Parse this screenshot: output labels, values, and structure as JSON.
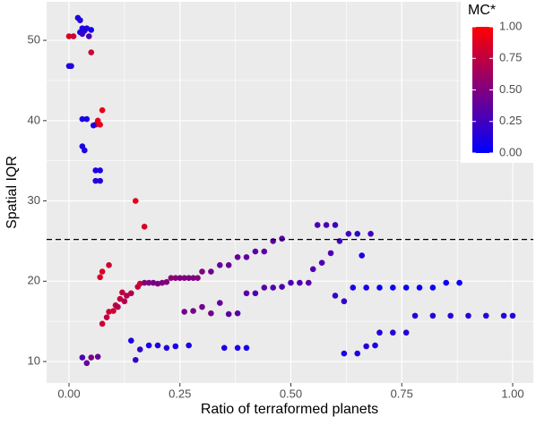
{
  "chart_data": {
    "type": "scatter",
    "x_label": "Ratio of terraformed planets",
    "y_label": "Spatial IQR",
    "xlim": [
      -0.0505,
      1.0465
    ],
    "ylim": [
      7.33,
      54.8
    ],
    "xticks": [
      {
        "value": 0,
        "label": "0.00"
      },
      {
        "value": 0.25,
        "label": "0.25"
      },
      {
        "value": 0.5,
        "label": "0.50"
      },
      {
        "value": 0.75,
        "label": "0.75"
      },
      {
        "value": 1,
        "label": "1.00"
      }
    ],
    "yticks": [
      10,
      20,
      30,
      40,
      50
    ],
    "x_minor": [
      0.125,
      0.375,
      0.625,
      0.875
    ],
    "y_minor": [
      15,
      25,
      35,
      45
    ],
    "grid": true,
    "hline": 25.2,
    "colorbar": {
      "title": "MC*",
      "lim": [
        0,
        1
      ],
      "low_color": "#0000ff",
      "high_color": "#ff0000",
      "ticks": [
        {
          "value": 1,
          "label": "1.00"
        },
        {
          "value": 0.75,
          "label": "0.75"
        },
        {
          "value": 0.5,
          "label": "0.50"
        },
        {
          "value": 0.25,
          "label": "0.25"
        },
        {
          "value": 0,
          "label": "0.00"
        }
      ]
    },
    "x": [
      0.0,
      0.01,
      0.0,
      0.005,
      0.02,
      0.025,
      0.03,
      0.035,
      0.04,
      0.05,
      0.025,
      0.03,
      0.045,
      0.05,
      0.03,
      0.04,
      0.06,
      0.065,
      0.07,
      0.075,
      0.055,
      0.03,
      0.035,
      0.06,
      0.07,
      0.06,
      0.07,
      0.15,
      0.17,
      0.07,
      0.075,
      0.09,
      0.075,
      0.085,
      0.09,
      0.1,
      0.105,
      0.11,
      0.115,
      0.12,
      0.125,
      0.13,
      0.14,
      0.155,
      0.16,
      0.17,
      0.18,
      0.19,
      0.2,
      0.21,
      0.22,
      0.23,
      0.24,
      0.25,
      0.26,
      0.27,
      0.28,
      0.29,
      0.3,
      0.32,
      0.34,
      0.36,
      0.38,
      0.4,
      0.42,
      0.44,
      0.46,
      0.48,
      0.26,
      0.28,
      0.3,
      0.32,
      0.34,
      0.36,
      0.38,
      0.4,
      0.42,
      0.44,
      0.46,
      0.48,
      0.5,
      0.52,
      0.54,
      0.55,
      0.57,
      0.59,
      0.61,
      0.63,
      0.65,
      0.68,
      0.56,
      0.58,
      0.6,
      0.6,
      0.62,
      0.64,
      0.67,
      0.7,
      0.73,
      0.76,
      0.79,
      0.82,
      0.85,
      0.88,
      0.66,
      0.7,
      0.73,
      0.76,
      0.78,
      0.82,
      0.86,
      0.9,
      0.94,
      0.98,
      1.0,
      0.03,
      0.04,
      0.05,
      0.065,
      0.14,
      0.15,
      0.16,
      0.18,
      0.2,
      0.22,
      0.24,
      0.27,
      0.35,
      0.38,
      0.4,
      0.62,
      0.65,
      0.67,
      0.69
    ],
    "y": [
      50.5,
      50.5,
      46.8,
      46.8,
      52.8,
      52.5,
      51.5,
      51.2,
      51.5,
      51.3,
      51.0,
      50.8,
      50.5,
      48.5,
      40.2,
      40.2,
      39.5,
      40.0,
      39.5,
      41.3,
      39.4,
      36.8,
      36.3,
      33.8,
      33.8,
      32.5,
      32.5,
      30,
      26.8,
      20.5,
      21.2,
      22,
      14.7,
      15.5,
      16.2,
      16.3,
      17,
      16.8,
      17.8,
      18.6,
      17.5,
      18.2,
      18.5,
      19.3,
      19.7,
      19.8,
      19.8,
      19.8,
      19.7,
      19.8,
      19.9,
      20.4,
      20.4,
      20.4,
      20.4,
      20.4,
      20.4,
      20.4,
      21.2,
      21.2,
      22,
      22,
      23,
      23,
      23.7,
      23.7,
      25,
      25.3,
      16.2,
      16.3,
      16.8,
      16.0,
      17.3,
      15.9,
      16.0,
      18.5,
      18.5,
      19.2,
      19.2,
      19.3,
      19.8,
      19.8,
      19.8,
      21.5,
      22.3,
      23.5,
      25,
      25.9,
      25.9,
      25.9,
      27,
      27,
      27,
      18.2,
      17.5,
      19.2,
      19.2,
      19.2,
      19.2,
      19.2,
      19.2,
      19.2,
      19.8,
      19.8,
      23.2,
      13.6,
      13.6,
      13.6,
      15.7,
      15.7,
      15.7,
      15.7,
      15.7,
      15.7,
      15.7,
      10.5,
      9.8,
      10.5,
      10.6,
      12.6,
      10.2,
      11.5,
      12,
      12,
      11.7,
      11.9,
      12,
      11.7,
      11.7,
      11.7,
      11,
      11,
      11.9,
      12
    ],
    "mc": [
      0.85,
      0.8,
      0.1,
      0.15,
      0.1,
      0.15,
      0.1,
      0.1,
      0.15,
      0.05,
      0.1,
      0.2,
      0.3,
      0.8,
      0.1,
      0.1,
      0.8,
      0.9,
      0.9,
      0.9,
      0.1,
      0.1,
      0.1,
      0.1,
      0.1,
      0.15,
      0.15,
      0.9,
      0.85,
      0.85,
      0.85,
      0.8,
      0.8,
      0.75,
      0.8,
      0.8,
      0.75,
      0.7,
      0.75,
      0.75,
      0.7,
      0.7,
      0.7,
      0.75,
      0.8,
      0.5,
      0.5,
      0.45,
      0.5,
      0.5,
      0.5,
      0.55,
      0.55,
      0.5,
      0.5,
      0.5,
      0.5,
      0.5,
      0.5,
      0.45,
      0.4,
      0.4,
      0.4,
      0.4,
      0.35,
      0.35,
      0.35,
      0.35,
      0.45,
      0.45,
      0.45,
      0.45,
      0.4,
      0.35,
      0.35,
      0.35,
      0.3,
      0.35,
      0.3,
      0.3,
      0.3,
      0.3,
      0.35,
      0.3,
      0.3,
      0.3,
      0.25,
      0.25,
      0.2,
      0.25,
      0.3,
      0.3,
      0.25,
      0.2,
      0.2,
      0.1,
      0.1,
      0.05,
      0.05,
      0.05,
      0.05,
      0.05,
      0.05,
      0.05,
      0.1,
      0.15,
      0.15,
      0.15,
      0.15,
      0.15,
      0.15,
      0.15,
      0.15,
      0.15,
      0.15,
      0.3,
      0.4,
      0.5,
      0.4,
      0.1,
      0.2,
      0.2,
      0.1,
      0.1,
      0.15,
      0.1,
      0.1,
      0.1,
      0.1,
      0.1,
      0.1,
      0.1,
      0.15,
      0.1
    ]
  }
}
